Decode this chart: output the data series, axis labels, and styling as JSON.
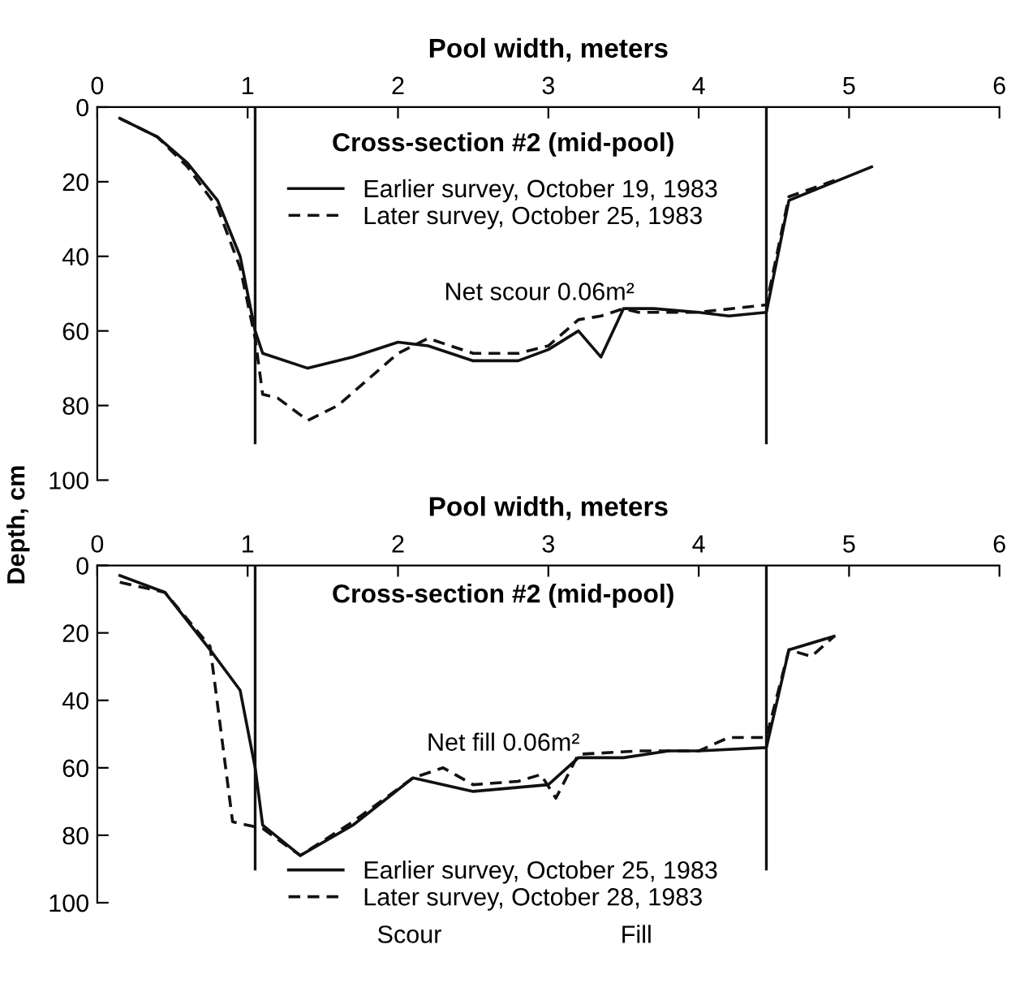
{
  "chart_data": [
    {
      "type": "line",
      "title": "Pool width, meters",
      "subtitle": "Cross-section #2 (mid-pool)",
      "ylabel": "Depth, cm",
      "xlim": [
        0,
        6
      ],
      "xticks": [
        0,
        1,
        2,
        3,
        4,
        5,
        6
      ],
      "ylim": [
        100,
        0
      ],
      "yticks": [
        0,
        20,
        40,
        60,
        80,
        100
      ],
      "grid": false,
      "legend": "top",
      "marker": "none",
      "series": [
        {
          "name": "Earlier survey, October 19, 1983",
          "color": "#111111",
          "line_style": "solid",
          "x": [
            0.15,
            0.4,
            0.6,
            0.8,
            0.95,
            1.05,
            1.1,
            1.4,
            1.7,
            2.0,
            2.2,
            2.5,
            2.8,
            3.0,
            3.2,
            3.35,
            3.5,
            3.7,
            4.0,
            4.2,
            4.45,
            4.6,
            5.15
          ],
          "values": [
            3,
            8,
            15,
            25,
            40,
            60,
            66,
            70,
            67,
            63,
            64,
            68,
            68,
            65,
            60,
            67,
            54,
            54,
            55,
            56,
            55,
            25,
            16
          ]
        },
        {
          "name": "Later survey, October 25, 1983",
          "color": "#111111",
          "line_style": "dashed",
          "x": [
            0.15,
            0.4,
            0.6,
            0.8,
            0.95,
            1.05,
            1.1,
            1.2,
            1.4,
            1.6,
            1.8,
            2.0,
            2.2,
            2.5,
            2.8,
            3.0,
            3.2,
            3.35,
            3.5,
            3.6,
            4.0,
            4.45,
            4.6,
            4.95
          ],
          "values": [
            3,
            8,
            16,
            27,
            43,
            62,
            77,
            78,
            84,
            80,
            73,
            66,
            62,
            66,
            66,
            64,
            57,
            56,
            54,
            55,
            55,
            53,
            24,
            19
          ]
        }
      ],
      "ref_lines": [
        {
          "axis": "x",
          "value": 1.05,
          "color": "#111111"
        },
        {
          "axis": "x",
          "value": 4.45,
          "color": "#111111"
        }
      ],
      "annotations": [
        "Net scour 0.06m²"
      ]
    },
    {
      "type": "line",
      "title": "Pool width, meters",
      "subtitle": "Cross-section #2 (mid-pool)",
      "xlim": [
        0,
        6
      ],
      "xticks": [
        0,
        1,
        2,
        3,
        4,
        5,
        6
      ],
      "ylim": [
        100,
        0
      ],
      "yticks": [
        0,
        20,
        40,
        60,
        80,
        100
      ],
      "grid": false,
      "legend": "bottom",
      "marker": "none",
      "series": [
        {
          "name": "Earlier survey, October 25, 1983",
          "color": "#111111",
          "line_style": "solid",
          "x": [
            0.15,
            0.45,
            0.75,
            0.95,
            1.05,
            1.1,
            1.35,
            1.7,
            2.1,
            2.5,
            3.0,
            3.2,
            3.5,
            3.8,
            4.0,
            4.45,
            4.6,
            4.9
          ],
          "values": [
            3,
            8,
            25,
            37,
            60,
            77,
            86,
            77,
            63,
            67,
            65,
            57,
            57,
            55,
            55,
            54,
            25,
            21
          ]
        },
        {
          "name": "Later survey, October 28, 1983",
          "color": "#111111",
          "line_style": "dashed",
          "x": [
            0.15,
            0.45,
            0.75,
            0.9,
            1.1,
            1.35,
            1.7,
            2.1,
            2.3,
            2.5,
            2.8,
            2.95,
            3.05,
            3.2,
            3.6,
            3.8,
            4.0,
            4.2,
            4.45,
            4.6,
            4.75,
            4.9
          ],
          "values": [
            5,
            8,
            24,
            76,
            78,
            86,
            76,
            63,
            60,
            65,
            64,
            62,
            69,
            56,
            55,
            55,
            55,
            51,
            51,
            25,
            27,
            21
          ]
        }
      ],
      "ref_lines": [
        {
          "axis": "x",
          "value": 1.05,
          "color": "#111111"
        },
        {
          "axis": "x",
          "value": 4.45,
          "color": "#111111"
        }
      ],
      "annotations": [
        "Net fill 0.06m²",
        "Scour",
        "Fill"
      ]
    }
  ]
}
